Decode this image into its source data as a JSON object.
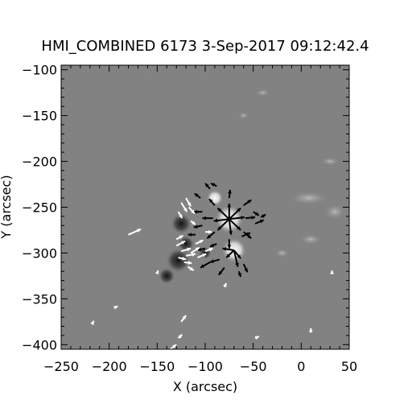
{
  "chart_data": {
    "type": "heatmap",
    "title": "HMI_COMBINED 6173  3-Sep-2017 09:12:42.4",
    "xlabel": "X (arcsec)",
    "ylabel": "Y (arcsec)",
    "xlim": [
      -250,
      50
    ],
    "ylim": [
      -405,
      -95
    ],
    "x_ticks": [
      -250,
      -200,
      -150,
      -100,
      -50,
      0,
      50
    ],
    "y_ticks": [
      -100,
      -150,
      -200,
      -250,
      -300,
      -350,
      -400
    ],
    "x_tick_labels": [
      "−250",
      "−200",
      "−150",
      "−100",
      "−50",
      "0",
      "50"
    ],
    "y_tick_labels": [
      "−100",
      "−150",
      "−200",
      "−250",
      "−300",
      "−350",
      "−400"
    ],
    "image_description": "grayscale line-of-sight magnetogram with transverse field vectors (black arrows on positive polarity, white arrows on negative polarity)",
    "colors": {
      "background_field": "#808080",
      "positive_polarity": "#ffffff",
      "negative_polarity": "#1a1a1a",
      "vectors_on_positive": "#000000",
      "vectors_on_negative": "#ffffff"
    },
    "features": [
      {
        "kind": "positive_spot",
        "x": -75,
        "y": -263,
        "r": 7
      },
      {
        "kind": "positive_spot",
        "x": -70,
        "y": -297,
        "r": 6
      },
      {
        "kind": "positive_spot",
        "x": -90,
        "y": -240,
        "r": 4
      },
      {
        "kind": "negative_spot",
        "x": -125,
        "y": -268,
        "r": 5
      },
      {
        "kind": "negative_spot",
        "x": -128,
        "y": -308,
        "r": 6
      },
      {
        "kind": "negative_spot",
        "x": -120,
        "y": -290,
        "r": 4
      },
      {
        "kind": "negative_spot",
        "x": -140,
        "y": -325,
        "r": 4
      },
      {
        "kind": "negative_spot",
        "x": -100,
        "y": -300,
        "r": 3
      }
    ],
    "vectors_black": [
      {
        "x": -75,
        "y": -263,
        "dx": 0,
        "dy": 17
      },
      {
        "x": -75,
        "y": -263,
        "dx": 12,
        "dy": 12
      },
      {
        "x": -75,
        "y": -263,
        "dx": 16,
        "dy": 2
      },
      {
        "x": -75,
        "y": -263,
        "dx": 12,
        "dy": -12
      },
      {
        "x": -75,
        "y": -263,
        "dx": 2,
        "dy": -17
      },
      {
        "x": -75,
        "y": -263,
        "dx": -12,
        "dy": -12
      },
      {
        "x": -75,
        "y": -263,
        "dx": -16,
        "dy": -2
      },
      {
        "x": -75,
        "y": -263,
        "dx": -12,
        "dy": 12
      },
      {
        "x": -58,
        "y": -262,
        "dx": 10,
        "dy": 1
      },
      {
        "x": -92,
        "y": -262,
        "dx": -11,
        "dy": 0
      },
      {
        "x": -75,
        "y": -240,
        "dx": 1,
        "dy": 9
      },
      {
        "x": -75,
        "y": -285,
        "dx": 0,
        "dy": -10
      },
      {
        "x": -60,
        "y": -248,
        "dx": 8,
        "dy": 6
      },
      {
        "x": -60,
        "y": -277,
        "dx": 8,
        "dy": -7
      },
      {
        "x": -90,
        "y": -277,
        "dx": -8,
        "dy": -7
      },
      {
        "x": -90,
        "y": -248,
        "dx": -6,
        "dy": 7
      },
      {
        "x": -103,
        "y": -255,
        "dx": -9,
        "dy": 0
      },
      {
        "x": -103,
        "y": -270,
        "dx": -9,
        "dy": -2
      },
      {
        "x": -105,
        "y": -240,
        "dx": -6,
        "dy": 5
      },
      {
        "x": -95,
        "y": -230,
        "dx": -5,
        "dy": 6
      },
      {
        "x": -88,
        "y": -227,
        "dx": -6,
        "dy": 3
      },
      {
        "x": -48,
        "y": -268,
        "dx": 9,
        "dy": 4
      },
      {
        "x": -50,
        "y": -255,
        "dx": 6,
        "dy": -4
      },
      {
        "x": -70,
        "y": -297,
        "dx": -8,
        "dy": -8
      },
      {
        "x": -70,
        "y": -297,
        "dx": 7,
        "dy": -9
      },
      {
        "x": -70,
        "y": -297,
        "dx": -12,
        "dy": 2
      },
      {
        "x": -70,
        "y": -297,
        "dx": 4,
        "dy": -18
      },
      {
        "x": -85,
        "y": -307,
        "dx": -10,
        "dy": -3
      },
      {
        "x": -95,
        "y": -310,
        "dx": -10,
        "dy": -6
      },
      {
        "x": -80,
        "y": -316,
        "dx": -6,
        "dy": -8
      },
      {
        "x": -60,
        "y": -312,
        "dx": 4,
        "dy": -9
      },
      {
        "x": -62,
        "y": -282,
        "dx": 9,
        "dy": 4
      },
      {
        "x": -100,
        "y": -295,
        "dx": -8,
        "dy": -2
      },
      {
        "x": -88,
        "y": -290,
        "dx": -7,
        "dy": -3
      },
      {
        "x": -42,
        "y": -261,
        "dx": 5,
        "dy": 3
      },
      {
        "x": -110,
        "y": -280,
        "dx": -8,
        "dy": 0
      },
      {
        "x": -65,
        "y": -320,
        "dx": 2,
        "dy": -6
      }
    ],
    "vectors_white": [
      {
        "x": -125,
        "y": -245,
        "dx": 6,
        "dy": -10
      },
      {
        "x": -120,
        "y": -240,
        "dx": 5,
        "dy": -9
      },
      {
        "x": -117,
        "y": -250,
        "dx": 6,
        "dy": -7
      },
      {
        "x": -128,
        "y": -255,
        "dx": 4,
        "dy": -7
      },
      {
        "x": -130,
        "y": -292,
        "dx": 9,
        "dy": 5
      },
      {
        "x": -125,
        "y": -298,
        "dx": 10,
        "dy": 3
      },
      {
        "x": -120,
        "y": -303,
        "dx": 10,
        "dy": 2
      },
      {
        "x": -128,
        "y": -305,
        "dx": 8,
        "dy": -2
      },
      {
        "x": -122,
        "y": -310,
        "dx": 8,
        "dy": -1
      },
      {
        "x": -115,
        "y": -300,
        "dx": 9,
        "dy": 6
      },
      {
        "x": -110,
        "y": -290,
        "dx": 8,
        "dy": 4
      },
      {
        "x": -130,
        "y": -285,
        "dx": 7,
        "dy": 4
      },
      {
        "x": -118,
        "y": -315,
        "dx": 6,
        "dy": -4
      },
      {
        "x": -108,
        "y": -305,
        "dx": 9,
        "dy": 4
      },
      {
        "x": -100,
        "y": -298,
        "dx": 8,
        "dy": 3
      },
      {
        "x": -115,
        "y": -265,
        "dx": 5,
        "dy": -4
      },
      {
        "x": -180,
        "y": -280,
        "dx": 13,
        "dy": 6
      },
      {
        "x": -128,
        "y": -393,
        "dx": 4,
        "dy": 4
      },
      {
        "x": -140,
        "y": -408,
        "dx": 10,
        "dy": 8
      },
      {
        "x": -125,
        "y": -375,
        "dx": 5,
        "dy": 7
      },
      {
        "x": -218,
        "y": -378,
        "dx": 2,
        "dy": 4
      },
      {
        "x": -195,
        "y": -360,
        "dx": 4,
        "dy": 2
      },
      {
        "x": -150,
        "y": -322,
        "dx": 1,
        "dy": 3
      },
      {
        "x": 10,
        "y": -387,
        "dx": 0,
        "dy": 5
      },
      {
        "x": -48,
        "y": -393,
        "dx": 4,
        "dy": 2
      },
      {
        "x": 32,
        "y": -323,
        "dx": 0,
        "dy": 4
      },
      {
        "x": -80,
        "y": -337,
        "dx": 2,
        "dy": 4
      },
      {
        "x": -100,
        "y": -277,
        "dx": 7,
        "dy": 0
      }
    ],
    "faint_patches": [
      {
        "x": 8,
        "y": -240,
        "rx": 22,
        "ry": 8
      },
      {
        "x": 35,
        "y": -255,
        "rx": 12,
        "ry": 9
      },
      {
        "x": -40,
        "y": -125,
        "rx": 8,
        "ry": 4
      },
      {
        "x": 30,
        "y": -200,
        "rx": 10,
        "ry": 5
      },
      {
        "x": -60,
        "y": -150,
        "rx": 6,
        "ry": 4
      },
      {
        "x": 10,
        "y": -285,
        "rx": 12,
        "ry": 6
      },
      {
        "x": -20,
        "y": -300,
        "rx": 8,
        "ry": 5
      }
    ]
  }
}
